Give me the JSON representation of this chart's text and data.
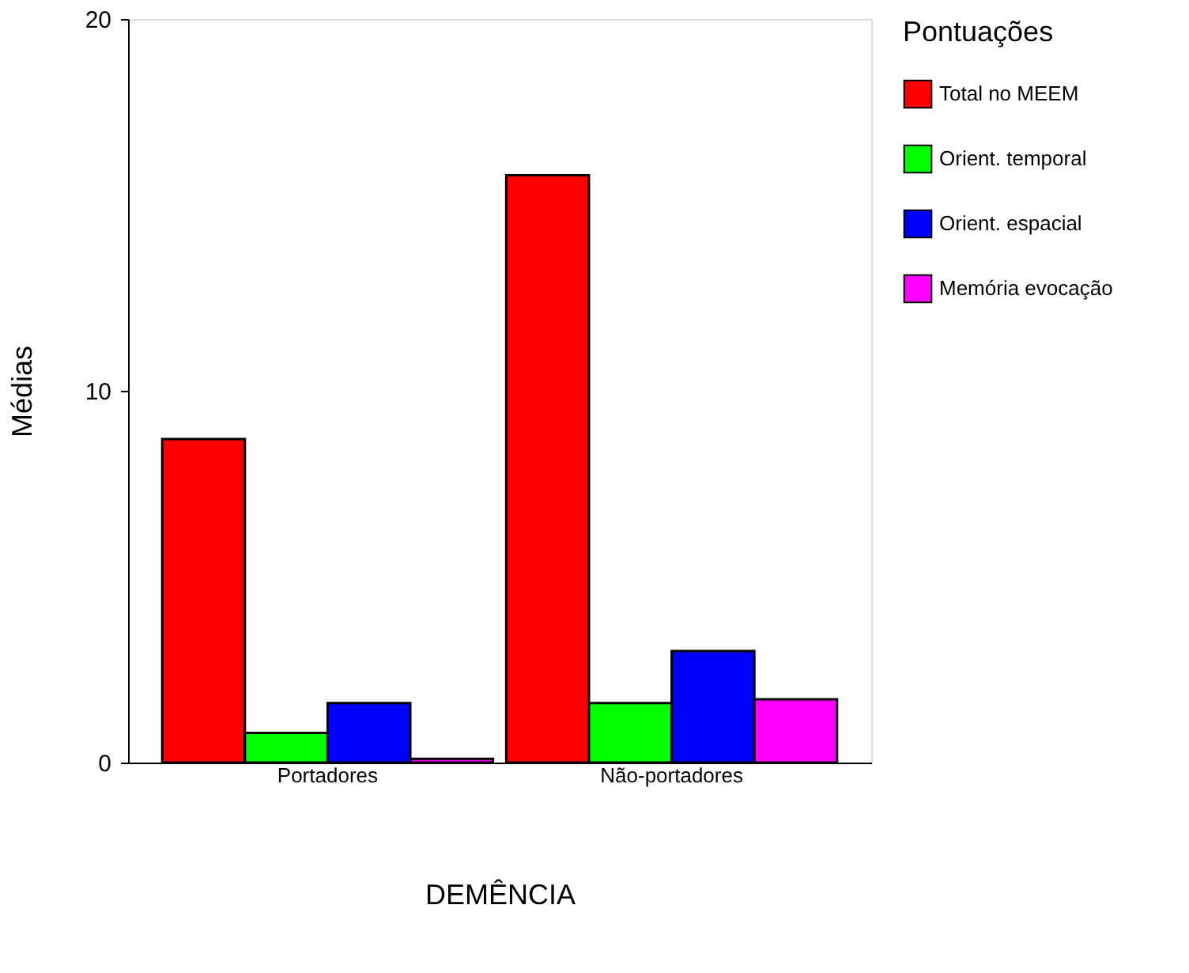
{
  "chart_data": {
    "type": "bar",
    "xlabel": "DEMÊNCIA",
    "ylabel": "Médias",
    "legend_title": "Pontuações",
    "categories": [
      "Portadores",
      "Não-portadores"
    ],
    "series": [
      {
        "name": "Total no MEEM",
        "color": "#ff0000",
        "values": [
          8.7,
          15.8
        ]
      },
      {
        "name": "Orient. temporal",
        "color": "#00ff00",
        "values": [
          0.8,
          1.6
        ]
      },
      {
        "name": "Orient. espacial",
        "color": "#0000ff",
        "values": [
          1.6,
          3.0
        ]
      },
      {
        "name": "Memória evocação",
        "color": "#ff00ff",
        "values": [
          0.1,
          1.7
        ]
      }
    ],
    "ylim": [
      0,
      20
    ],
    "yticks": [
      0,
      10,
      20
    ],
    "grid": false,
    "legend": "right"
  }
}
